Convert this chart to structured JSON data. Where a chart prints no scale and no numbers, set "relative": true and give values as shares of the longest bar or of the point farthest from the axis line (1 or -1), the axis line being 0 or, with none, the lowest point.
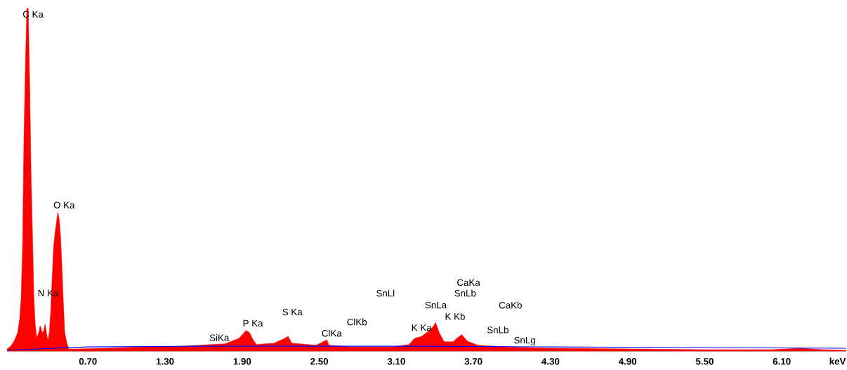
{
  "chart_data": {
    "type": "area",
    "relative": true,
    "xlabel": "keV",
    "xlim": [
      0.07,
      6.6
    ],
    "xticks": [
      {
        "value": 0.7,
        "label": "0.70"
      },
      {
        "value": 1.3,
        "label": "1.30"
      },
      {
        "value": 1.9,
        "label": "1.90"
      },
      {
        "value": 2.5,
        "label": "2.50"
      },
      {
        "value": 3.1,
        "label": "3.10"
      },
      {
        "value": 3.7,
        "label": "3.70"
      },
      {
        "value": 4.3,
        "label": "4.30"
      },
      {
        "value": 4.9,
        "label": "4.90"
      },
      {
        "value": 5.5,
        "label": "5.50"
      },
      {
        "value": 6.1,
        "label": "6.10"
      }
    ],
    "series": [
      {
        "color": "#ff0000",
        "x": [
          0.071,
          0.098,
          0.126,
          0.153,
          0.169,
          0.18,
          0.191,
          0.202,
          0.213,
          0.224,
          0.235,
          0.246,
          0.257,
          0.268,
          0.279,
          0.29,
          0.301,
          0.317,
          0.328,
          0.344,
          0.355,
          0.366,
          0.377,
          0.388,
          0.399,
          0.41,
          0.421,
          0.432,
          0.443,
          0.454,
          0.465,
          0.476,
          0.487,
          0.498,
          0.509,
          0.519,
          0.536,
          0.552,
          0.618,
          0.837,
          1.11,
          1.438,
          1.657,
          1.766,
          1.875,
          1.93,
          1.957,
          1.985,
          2.012,
          2.149,
          2.231,
          2.258,
          2.285,
          2.477,
          2.559,
          2.575,
          2.75,
          3.078,
          3.198,
          3.242,
          3.297,
          3.351,
          3.384,
          3.406,
          3.433,
          3.472,
          3.543,
          3.57,
          3.609,
          3.652,
          3.734,
          3.953,
          4.281,
          4.937,
          5.484,
          6.031,
          6.25,
          6.414,
          6.6
        ],
        "values": [
          0.006,
          0.014,
          0.029,
          0.054,
          0.095,
          0.157,
          0.312,
          0.632,
          0.829,
          1,
          1,
          0.787,
          0.519,
          0.343,
          0.157,
          0.074,
          0.039,
          0.054,
          0.074,
          0.054,
          0.058,
          0.079,
          0.054,
          0.029,
          0.054,
          0.116,
          0.21,
          0.302,
          0.343,
          0.374,
          0.405,
          0.384,
          0.333,
          0.24,
          0.136,
          0.054,
          0.023,
          0.006,
          0.006,
          0.008,
          0.012,
          0.014,
          0.019,
          0.021,
          0.037,
          0.06,
          0.054,
          0.033,
          0.019,
          0.023,
          0.037,
          0.043,
          0.023,
          0.017,
          0.033,
          0.017,
          0.012,
          0.012,
          0.019,
          0.037,
          0.043,
          0.058,
          0.07,
          0.083,
          0.054,
          0.027,
          0.027,
          0.037,
          0.048,
          0.029,
          0.017,
          0.012,
          0.008,
          0.006,
          0.004,
          0.004,
          0.008,
          0.004,
          0.002
        ]
      },
      {
        "type": "line",
        "color": "#0000ff",
        "x": [
          0.071,
          0.3,
          0.7,
          1.5,
          3.3,
          4.3,
          6.6
        ],
        "values": [
          0.002,
          0.006,
          0.012,
          0.014,
          0.014,
          0.012,
          0.008
        ]
      }
    ],
    "annotations": [
      "C Ka",
      "O Ka",
      "N Ka",
      "SiKa",
      "P Ka",
      "S Ka",
      "ClKa",
      "ClKb",
      "SnLl",
      "SnLa",
      "K Ka",
      "K Kb",
      "CaKa",
      "SnLb",
      "CaKb",
      "SnLb",
      "SnLg"
    ]
  }
}
